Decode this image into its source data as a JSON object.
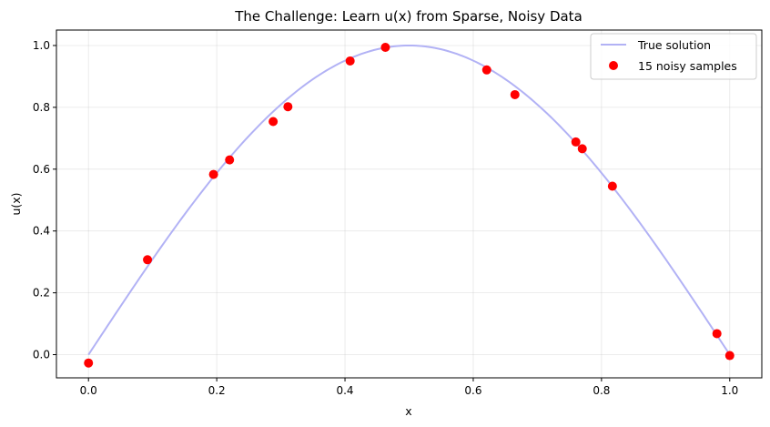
{
  "chart_data": {
    "type": "line",
    "title": "The Challenge: Learn u(x) from Sparse, Noisy Data",
    "xlabel": "x",
    "ylabel": "u(x)",
    "xlim": [
      -0.05,
      1.05
    ],
    "ylim": [
      -0.075,
      1.05
    ],
    "xticks": [
      0.0,
      0.2,
      0.4,
      0.6,
      0.8,
      1.0
    ],
    "xtick_labels": [
      "0.0",
      "0.2",
      "0.4",
      "0.6",
      "0.8",
      "1.0"
    ],
    "yticks": [
      0.0,
      0.2,
      0.4,
      0.6,
      0.8,
      1.0
    ],
    "ytick_labels": [
      "0.0",
      "0.2",
      "0.4",
      "0.6",
      "0.8",
      "1.0"
    ],
    "grid": true,
    "legend_position": "top-right",
    "series": [
      {
        "name": "True solution",
        "kind": "line",
        "function": "sin(pi*x)",
        "color": "#b2b2f5",
        "x_range": [
          0,
          1
        ]
      },
      {
        "name": "15 noisy samples",
        "kind": "scatter",
        "color": "#ff0000",
        "points": [
          {
            "x": 0.0,
            "y": -0.027
          },
          {
            "x": 0.092,
            "y": 0.307
          },
          {
            "x": 0.195,
            "y": 0.583
          },
          {
            "x": 0.22,
            "y": 0.63
          },
          {
            "x": 0.288,
            "y": 0.754
          },
          {
            "x": 0.311,
            "y": 0.802
          },
          {
            "x": 0.408,
            "y": 0.95
          },
          {
            "x": 0.463,
            "y": 0.994
          },
          {
            "x": 0.621,
            "y": 0.921
          },
          {
            "x": 0.665,
            "y": 0.841
          },
          {
            "x": 0.76,
            "y": 0.688
          },
          {
            "x": 0.77,
            "y": 0.666
          },
          {
            "x": 0.817,
            "y": 0.545
          },
          {
            "x": 0.98,
            "y": 0.068
          },
          {
            "x": 1.0,
            "y": -0.003
          }
        ]
      }
    ]
  }
}
